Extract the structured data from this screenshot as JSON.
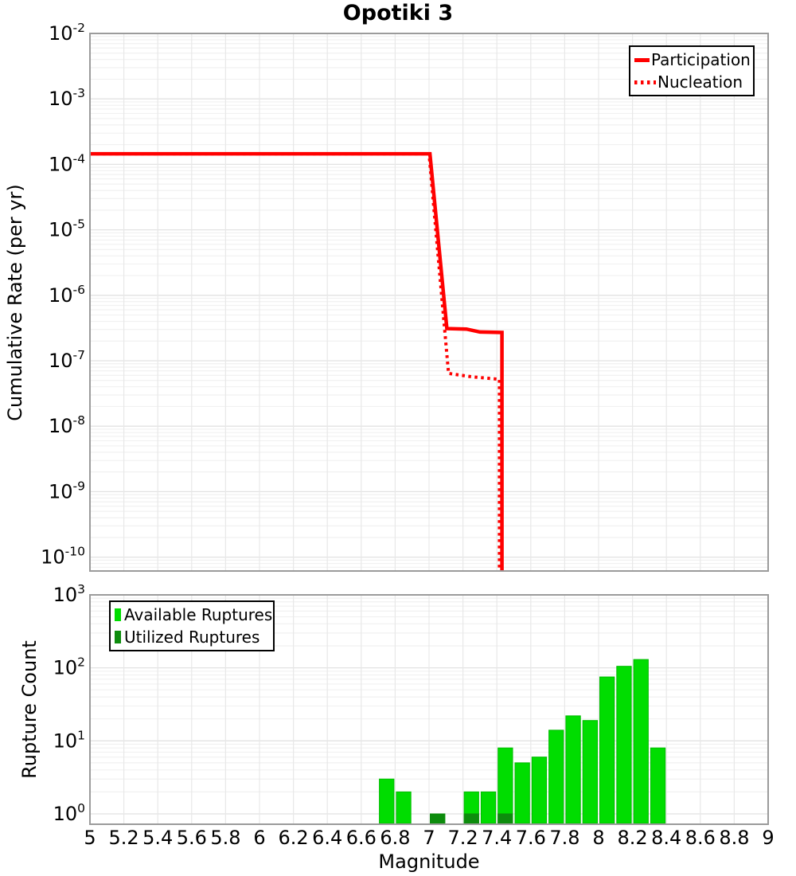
{
  "title": "Opotiki 3",
  "colors": {
    "participation_line": "#ff0000",
    "nucleation_line": "#ff0000",
    "available_bar": "#00dd00",
    "available_bar_edge": "#00bb00",
    "utilized_bar": "#0d8c0d",
    "frame": "#9b9b9b",
    "grid_major": "#e2e2e2",
    "grid_minor": "#f1f1f1",
    "grid_vertical": "#e8e8e8",
    "legend_border": "#000000",
    "text": "#000000"
  },
  "chart_data": [
    {
      "type": "line",
      "title": "Opotiki 3",
      "ylabel": "Cumulative Rate (per yr)",
      "xlabel": "",
      "x_range": [
        5,
        9
      ],
      "x_tick_step": 0.2,
      "y_scale": "log",
      "y_tick_exponents": [
        -2,
        -3,
        -4,
        -5,
        -6,
        -7,
        -8,
        -9,
        -10
      ],
      "ylim": [
        1e-10,
        0.01
      ],
      "grid": true,
      "legend_position": "top-right",
      "series": [
        {
          "name": "Participation",
          "style": "solid",
          "color": "#ff0000",
          "points": [
            [
              5.0,
              0.000145
            ],
            [
              7.005,
              0.000145
            ],
            [
              7.105,
              3.1e-07
            ],
            [
              7.22,
              3.05e-07
            ],
            [
              7.3,
              2.75e-07
            ],
            [
              7.43,
              2.7e-07
            ],
            [
              7.43,
              6e-11
            ]
          ]
        },
        {
          "name": "Nucleation",
          "style": "dotted",
          "color": "#ff0000",
          "points": [
            [
              5.0,
              0.000145
            ],
            [
              7.0,
              0.000145
            ],
            [
              7.115,
              6.4e-08
            ],
            [
              7.25,
              5.7e-08
            ],
            [
              7.415,
              5.2e-08
            ],
            [
              7.415,
              6e-11
            ]
          ]
        }
      ]
    },
    {
      "type": "bar",
      "title": "",
      "ylabel": "Rupture Count",
      "xlabel": "Magnitude",
      "x_range": [
        5,
        9
      ],
      "x_tick_step": 0.2,
      "y_scale": "log",
      "y_tick_exponents": [
        3,
        2,
        1,
        0
      ],
      "ylim": [
        1,
        1000
      ],
      "bin_width": 0.1,
      "grid": true,
      "legend_position": "top-left",
      "series": [
        {
          "name": "Available Ruptures",
          "color": "#00dd00",
          "bin_centers": [
            6.75,
            6.85,
            7.05,
            7.25,
            7.35,
            7.45,
            7.55,
            7.65,
            7.75,
            7.85,
            7.95,
            8.05,
            8.15,
            8.25,
            8.35
          ],
          "counts": [
            3,
            2,
            1,
            2,
            2,
            8,
            5,
            6,
            14,
            22,
            19,
            75,
            105,
            130,
            8
          ]
        },
        {
          "name": "Utilized Ruptures",
          "color": "#0d8c0d",
          "bin_centers": [
            7.05,
            7.25,
            7.45
          ],
          "counts": [
            1,
            1,
            1
          ]
        }
      ]
    }
  ]
}
